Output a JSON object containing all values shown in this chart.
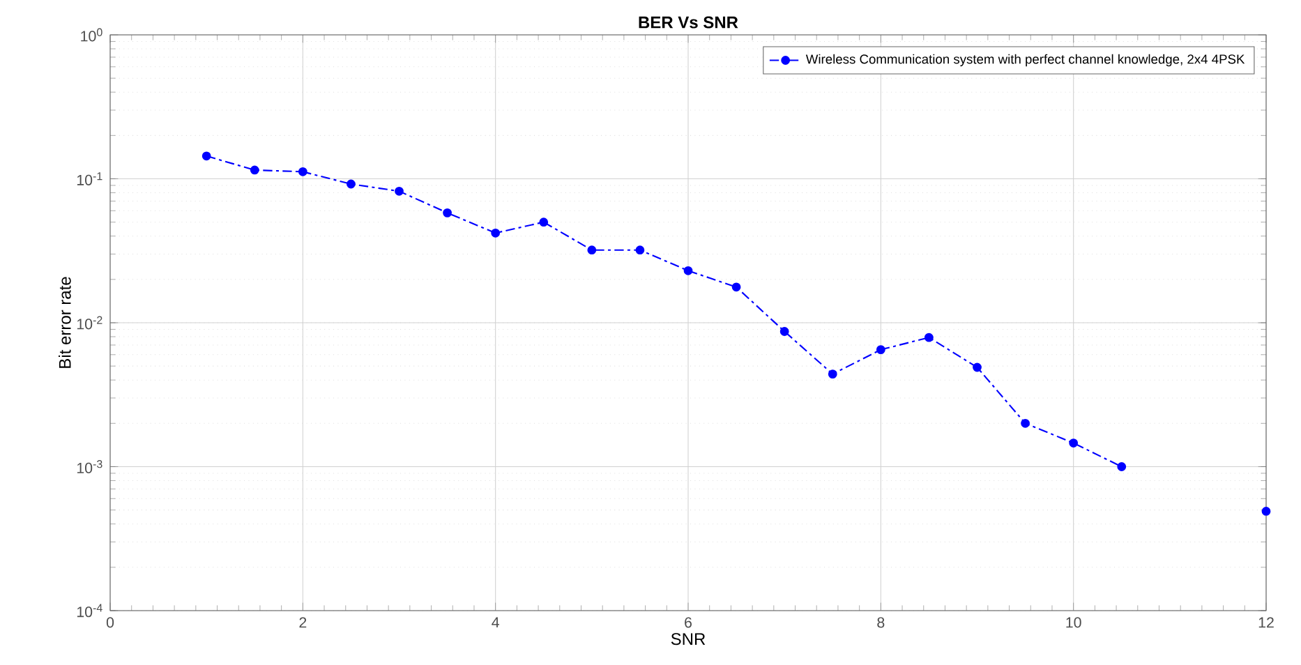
{
  "chart_data": {
    "type": "line",
    "title": "BER Vs SNR",
    "xlabel": "SNR",
    "ylabel": "Bit error rate",
    "x": [
      1,
      1.5,
      2,
      2.5,
      3,
      3.5,
      4,
      4.5,
      5,
      5.5,
      6,
      6.5,
      7,
      7.5,
      8,
      8.5,
      9,
      9.5,
      10,
      10.5,
      11,
      11.5,
      12
    ],
    "series": [
      {
        "name": "Wireless Communication system with perfect channel knowledge, 2x4 4PSK",
        "color": "#0000ff",
        "values": [
          0.144,
          0.115,
          0.112,
          0.092,
          0.082,
          0.058,
          0.042,
          0.05,
          0.032,
          0.032,
          0.023,
          0.0177,
          0.0087,
          0.0044,
          0.0065,
          0.0079,
          0.0049,
          0.002,
          0.00146,
          0.001,
          null,
          null,
          0.00049
        ]
      }
    ],
    "log": "y",
    "xlim": [
      0,
      12
    ],
    "ylim": [
      0.0001,
      1
    ],
    "xticks": [
      0,
      2,
      4,
      6,
      8,
      10,
      12
    ],
    "yticks": [
      {
        "value": 0.0001,
        "label": "10$^{-4}$"
      },
      {
        "value": 0.001,
        "label": "10$^{-3}$"
      },
      {
        "value": 0.01,
        "label": "10$^{-2}$"
      },
      {
        "value": 0.1,
        "label": "10$^{-1}$"
      },
      {
        "value": 1,
        "label": "10$^{0}$"
      }
    ],
    "grid": true,
    "legend": "top right",
    "marker": "circle",
    "line_style": "dashdot"
  }
}
